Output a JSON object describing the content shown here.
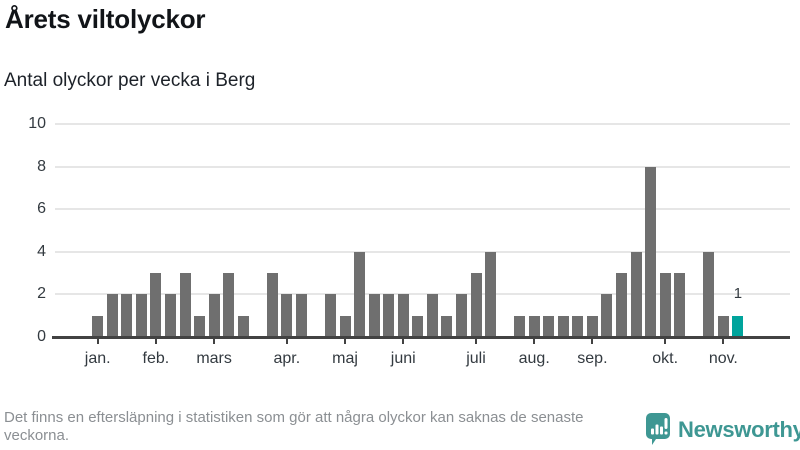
{
  "page": {
    "title": "Årets viltolyckor",
    "subtitle": "Antal olyckor per vecka i Berg",
    "footnote": "Det finns en eftersläpning i statistiken som gör att några olyckor kan saknas de senaste veckorna.",
    "brand": {
      "name": "Newsworthy",
      "icon": "newsworthy-speech-bubble-bar-chart-icon"
    }
  },
  "colors": {
    "bar_gray": "#6f6f6f",
    "bar_highlight_teal": "#00a49c",
    "brand_teal": "#3e9793",
    "axis": "#424242",
    "grid": "#e6e6e6",
    "tick_label": "#333a40",
    "footnote_gray": "#8b8f93",
    "title_color": "#111418"
  },
  "chart_data": {
    "type": "bar",
    "title": "Årets viltolyckor",
    "subtitle": "Antal olyckor per vecka i Berg",
    "xlabel": "",
    "ylabel": "",
    "x_unit": "vecka (week of year, 1-45)",
    "ylim": [
      0,
      10
    ],
    "yticks": [
      0,
      2,
      4,
      6,
      8,
      10
    ],
    "grid": true,
    "legend": false,
    "values": [
      1,
      2,
      2,
      2,
      3,
      2,
      3,
      1,
      2,
      3,
      1,
      0,
      3,
      2,
      2,
      0,
      2,
      1,
      4,
      2,
      2,
      2,
      1,
      2,
      1,
      2,
      3,
      4,
      0,
      1,
      1,
      1,
      1,
      1,
      1,
      2,
      3,
      4,
      8,
      3,
      3,
      0,
      4,
      1,
      1
    ],
    "month_ticks": [
      {
        "index": 0,
        "label": "jan."
      },
      {
        "index": 4,
        "label": "feb."
      },
      {
        "index": 8,
        "label": "mars"
      },
      {
        "index": 13,
        "label": "apr."
      },
      {
        "index": 17,
        "label": "maj"
      },
      {
        "index": 21,
        "label": "juni"
      },
      {
        "index": 26,
        "label": "juli"
      },
      {
        "index": 30,
        "label": "aug."
      },
      {
        "index": 34,
        "label": "sep."
      },
      {
        "index": 39,
        "label": "okt."
      },
      {
        "index": 43,
        "label": "nov."
      }
    ],
    "highlight": {
      "index": 44,
      "value": 1,
      "data_label": "1"
    }
  }
}
